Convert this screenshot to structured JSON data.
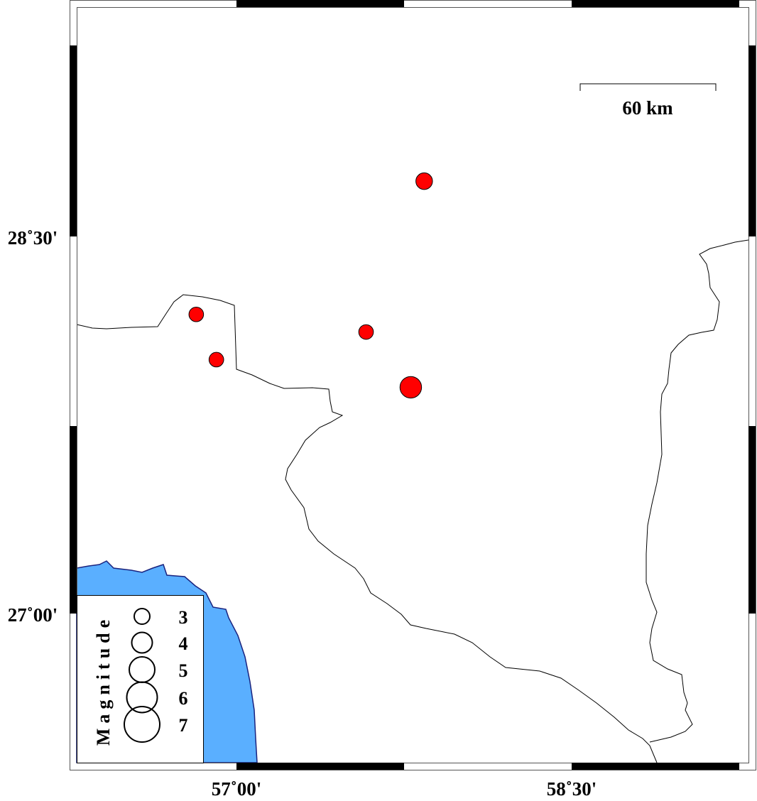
{
  "map": {
    "extent": {
      "lon_min": 56.285,
      "lon_max": 59.29,
      "lat_min": 26.41,
      "lat_max": 29.41
    },
    "colors": {
      "sea": "#5aafff",
      "coastline": "#1a237e",
      "event_fill": "#ff0000",
      "border": "#000000"
    },
    "x_ticks": [
      {
        "lon": 57.0,
        "label": "57˚00'"
      },
      {
        "lon": 58.5,
        "label": "58˚30'"
      }
    ],
    "y_ticks": [
      {
        "lat": 28.5,
        "label": "28˚30'"
      },
      {
        "lat": 27.0,
        "label": "27˚00'"
      }
    ],
    "scale_bar": {
      "label": "60 km"
    },
    "events": [
      {
        "lon": 57.84,
        "lat": 28.72,
        "mag": 3.2
      },
      {
        "lon": 56.82,
        "lat": 28.19,
        "mag": 2.8
      },
      {
        "lon": 56.91,
        "lat": 28.01,
        "mag": 2.8
      },
      {
        "lon": 57.58,
        "lat": 28.12,
        "mag": 2.8
      },
      {
        "lon": 57.78,
        "lat": 27.9,
        "mag": 4.2
      }
    ]
  },
  "legend": {
    "title": "Magnitude",
    "items": [
      {
        "mag": 3,
        "label": "3"
      },
      {
        "mag": 4,
        "label": "4"
      },
      {
        "mag": 5,
        "label": "5"
      },
      {
        "mag": 6,
        "label": "6"
      },
      {
        "mag": 7,
        "label": "7"
      }
    ]
  }
}
